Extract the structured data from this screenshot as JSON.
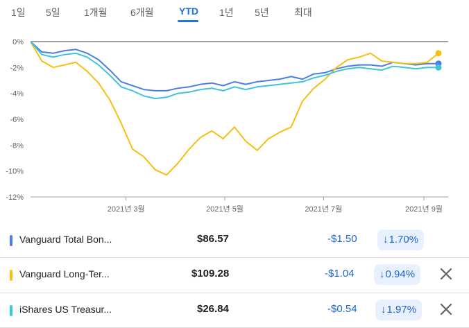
{
  "tabs": [
    {
      "label": "1일",
      "active": false
    },
    {
      "label": "5일",
      "active": false
    },
    {
      "label": "1개월",
      "active": false
    },
    {
      "label": "6개월",
      "active": false
    },
    {
      "label": "YTD",
      "active": true
    },
    {
      "label": "1년",
      "active": false
    },
    {
      "label": "5년",
      "active": false
    },
    {
      "label": "최대",
      "active": false
    }
  ],
  "chart_data": {
    "type": "line",
    "y_unit": "%",
    "ylim": [
      -12,
      0
    ],
    "y_ticks": [
      "0%",
      "-2%",
      "-4%",
      "-6%",
      "-8%",
      "-10%",
      "-12%"
    ],
    "x_ticks": [
      "2021년 3월",
      "2021년 5월",
      "2021년 7월",
      "2021년 9월"
    ],
    "x_tick_dates": [
      "2021-03-01",
      "2021-05-01",
      "2021-07-01",
      "2021-09-01"
    ],
    "grid": false,
    "series": [
      {
        "name": "Vanguard Total Bon...",
        "color": "#4d7de6",
        "x": [
          "2021-01-01",
          "2021-01-08",
          "2021-01-15",
          "2021-01-22",
          "2021-01-29",
          "2021-02-05",
          "2021-02-12",
          "2021-02-19",
          "2021-02-26",
          "2021-03-05",
          "2021-03-12",
          "2021-03-19",
          "2021-03-26",
          "2021-04-02",
          "2021-04-09",
          "2021-04-16",
          "2021-04-23",
          "2021-04-30",
          "2021-05-07",
          "2021-05-14",
          "2021-05-21",
          "2021-05-28",
          "2021-06-04",
          "2021-06-11",
          "2021-06-18",
          "2021-06-25",
          "2021-07-02",
          "2021-07-09",
          "2021-07-16",
          "2021-07-23",
          "2021-07-30",
          "2021-08-06",
          "2021-08-13",
          "2021-08-20",
          "2021-08-27",
          "2021-09-03",
          "2021-09-10"
        ],
        "y": [
          0,
          -0.8,
          -0.9,
          -0.7,
          -0.6,
          -0.9,
          -1.4,
          -2.2,
          -3.1,
          -3.4,
          -3.7,
          -3.8,
          -3.8,
          -3.6,
          -3.5,
          -3.3,
          -3.2,
          -3.4,
          -3.1,
          -3.3,
          -3.1,
          -3.0,
          -2.9,
          -2.7,
          -2.9,
          -2.5,
          -2.4,
          -2.1,
          -1.9,
          -1.8,
          -1.8,
          -1.9,
          -1.6,
          -1.7,
          -1.8,
          -1.7,
          -1.7
        ]
      },
      {
        "name": "Vanguard Long-Ter...",
        "color": "#f5bf14",
        "x": [
          "2021-01-01",
          "2021-01-08",
          "2021-01-15",
          "2021-01-22",
          "2021-01-29",
          "2021-02-05",
          "2021-02-12",
          "2021-02-19",
          "2021-02-26",
          "2021-03-05",
          "2021-03-12",
          "2021-03-19",
          "2021-03-26",
          "2021-04-02",
          "2021-04-09",
          "2021-04-16",
          "2021-04-23",
          "2021-04-30",
          "2021-05-07",
          "2021-05-14",
          "2021-05-21",
          "2021-05-28",
          "2021-06-04",
          "2021-06-11",
          "2021-06-18",
          "2021-06-25",
          "2021-07-02",
          "2021-07-09",
          "2021-07-16",
          "2021-07-23",
          "2021-07-30",
          "2021-08-06",
          "2021-08-13",
          "2021-08-20",
          "2021-08-27",
          "2021-09-03",
          "2021-09-10"
        ],
        "y": [
          0,
          -1.5,
          -2.0,
          -1.8,
          -1.6,
          -2.3,
          -3.2,
          -4.5,
          -6.3,
          -8.3,
          -8.9,
          -9.9,
          -10.3,
          -9.4,
          -8.3,
          -7.4,
          -6.9,
          -7.5,
          -6.6,
          -7.7,
          -8.4,
          -7.5,
          -7.0,
          -6.6,
          -4.6,
          -3.6,
          -2.9,
          -2.0,
          -1.4,
          -1.2,
          -0.9,
          -1.5,
          -1.6,
          -1.7,
          -1.7,
          -1.6,
          -0.9
        ]
      },
      {
        "name": "iShares US Treasur...",
        "color": "#3fc4d9",
        "x": [
          "2021-01-01",
          "2021-01-08",
          "2021-01-15",
          "2021-01-22",
          "2021-01-29",
          "2021-02-05",
          "2021-02-12",
          "2021-02-19",
          "2021-02-26",
          "2021-03-05",
          "2021-03-12",
          "2021-03-19",
          "2021-03-26",
          "2021-04-02",
          "2021-04-09",
          "2021-04-16",
          "2021-04-23",
          "2021-04-30",
          "2021-05-07",
          "2021-05-14",
          "2021-05-21",
          "2021-05-28",
          "2021-06-04",
          "2021-06-11",
          "2021-06-18",
          "2021-06-25",
          "2021-07-02",
          "2021-07-09",
          "2021-07-16",
          "2021-07-23",
          "2021-07-30",
          "2021-08-06",
          "2021-08-13",
          "2021-08-20",
          "2021-08-27",
          "2021-09-03",
          "2021-09-10"
        ],
        "y": [
          0,
          -1.0,
          -1.2,
          -1.0,
          -0.9,
          -1.2,
          -1.8,
          -2.6,
          -3.5,
          -3.8,
          -4.2,
          -4.4,
          -4.3,
          -4.0,
          -3.9,
          -3.7,
          -3.6,
          -3.8,
          -3.5,
          -3.7,
          -3.5,
          -3.4,
          -3.3,
          -3.2,
          -3.1,
          -2.8,
          -2.6,
          -2.3,
          -2.1,
          -2.0,
          -2.1,
          -2.2,
          -1.9,
          -2.0,
          -2.1,
          -2.0,
          -2.0
        ]
      }
    ]
  },
  "holdings": [
    {
      "name": "Vanguard Total Bon...",
      "color": "#4d7de6",
      "price": "$86.57",
      "change": "-$1.50",
      "pct_arrow": "↓",
      "pct": "1.70%",
      "removable": false
    },
    {
      "name": "Vanguard Long-Ter...",
      "color": "#f5bf14",
      "price": "$109.28",
      "change": "-$1.04",
      "pct_arrow": "↓",
      "pct": "0.94%",
      "removable": true
    },
    {
      "name": "iShares US Treasur...",
      "color": "#3fc4d9",
      "price": "$26.84",
      "change": "-$0.54",
      "pct_arrow": "↓",
      "pct": "1.97%",
      "removable": true
    }
  ]
}
